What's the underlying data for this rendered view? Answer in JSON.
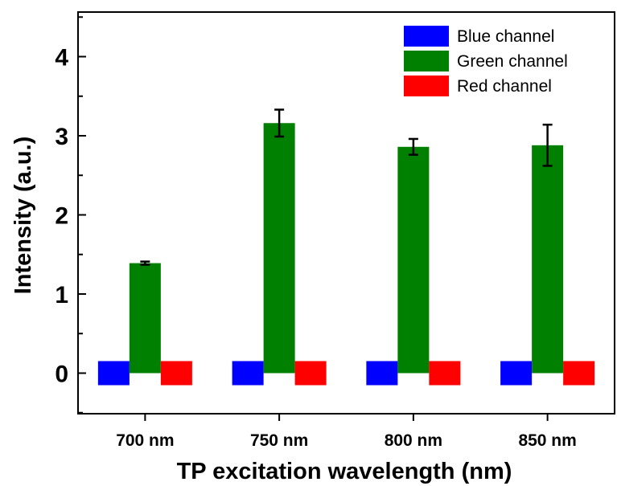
{
  "chart_data": {
    "type": "bar",
    "title": "",
    "xlabel": "TP excitation wavelength (nm)",
    "ylabel": "Intensity (a.u.)",
    "ylim": [
      -0.5,
      4.6
    ],
    "yticks": [
      "0",
      "1",
      "2",
      "3",
      "4"
    ],
    "categories": [
      "700 nm",
      "750 nm",
      "800 nm",
      "850 nm"
    ],
    "series": [
      {
        "name": "Blue channel",
        "color": "#0000FF",
        "values": [
          0,
          0,
          0,
          0
        ],
        "errors": [
          0,
          0,
          0,
          0
        ]
      },
      {
        "name": "Green channel",
        "color": "#008000",
        "values": [
          1.39,
          3.16,
          2.86,
          2.88
        ],
        "errors": [
          0.02,
          0.17,
          0.1,
          0.26
        ]
      },
      {
        "name": "Red channel",
        "color": "#FF0000",
        "values": [
          0,
          0,
          0,
          0
        ],
        "errors": [
          0,
          0,
          0,
          0
        ]
      }
    ],
    "legend_position": "top-right",
    "grid": false
  }
}
